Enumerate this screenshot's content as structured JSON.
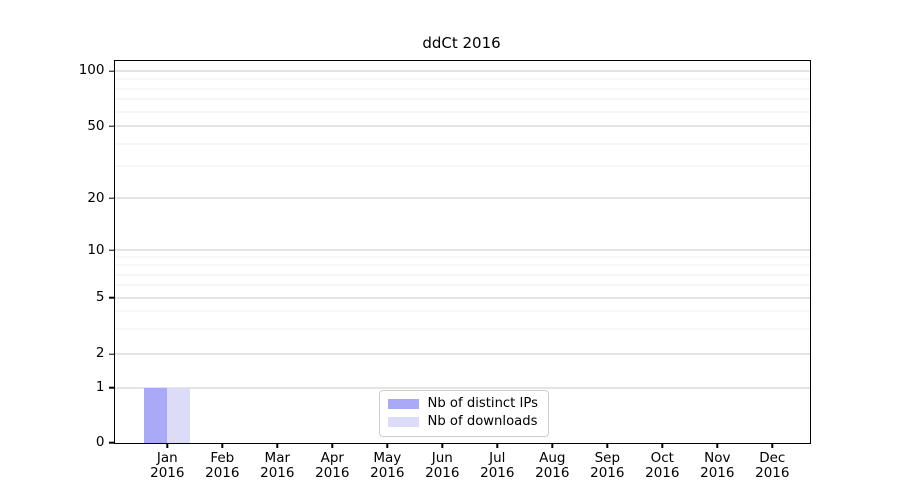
{
  "figure": {
    "title": "ddCt 2016"
  },
  "chart_data": {
    "type": "bar",
    "title": "ddCt 2016",
    "x_tick_labels": [
      [
        "Jan",
        "2016"
      ],
      [
        "Feb",
        "2016"
      ],
      [
        "Mar",
        "2016"
      ],
      [
        "Apr",
        "2016"
      ],
      [
        "May",
        "2016"
      ],
      [
        "Jun",
        "2016"
      ],
      [
        "Jul",
        "2016"
      ],
      [
        "Aug",
        "2016"
      ],
      [
        "Sep",
        "2016"
      ],
      [
        "Oct",
        "2016"
      ],
      [
        "Nov",
        "2016"
      ],
      [
        "Dec",
        "2016"
      ]
    ],
    "categories": [
      "Jan 2016",
      "Feb 2016",
      "Mar 2016",
      "Apr 2016",
      "May 2016",
      "Jun 2016",
      "Jul 2016",
      "Aug 2016",
      "Sep 2016",
      "Oct 2016",
      "Nov 2016",
      "Dec 2016"
    ],
    "series": [
      {
        "name": "Nb of distinct IPs",
        "color": "#a9a9f7",
        "values": [
          1,
          0,
          0,
          0,
          0,
          0,
          0,
          0,
          0,
          0,
          0,
          0
        ]
      },
      {
        "name": "Nb of downloads",
        "color": "#dcdcf9",
        "values": [
          1,
          0,
          0,
          0,
          0,
          0,
          0,
          0,
          0,
          0,
          0,
          0
        ]
      }
    ],
    "y_axis": {
      "scale": "symlog",
      "major_ticks": [
        0,
        1,
        2,
        5,
        10,
        20,
        50,
        100
      ],
      "minor_gridline_values": [
        3,
        4,
        6,
        7,
        8,
        9,
        30,
        40,
        60,
        70,
        80,
        90
      ],
      "range": [
        0,
        110
      ]
    },
    "grid": {
      "horizontal": true,
      "vertical": false
    },
    "legend": {
      "position": "lower center",
      "labels": [
        "Nb of distinct IPs",
        "Nb of downloads"
      ]
    },
    "colors": {
      "major_grid": "#c9c9c9",
      "minor_grid": "#ededed",
      "axis": "#000000",
      "background": "#ffffff"
    }
  }
}
